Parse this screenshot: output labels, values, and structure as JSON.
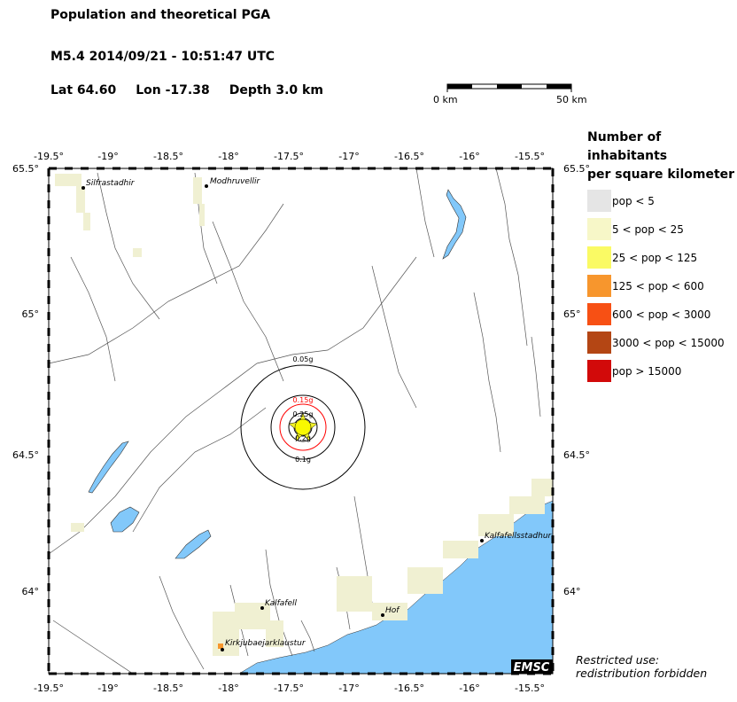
{
  "header": {
    "title": "Population and theoretical PGA",
    "event": "M5.4  2014/09/21 - 10:51:47 UTC",
    "lat": "Lat 64.60",
    "lon": "Lon -17.38",
    "depth": "Depth  3.0 km"
  },
  "scalebar": {
    "left_label": "0 km",
    "right_label": "50 km"
  },
  "axes": {
    "lon_ticks": [
      "-19.5°",
      "-19°",
      "-18.5°",
      "-18°",
      "-17.5°",
      "-17°",
      "-16.5°",
      "-16°",
      "-15.5°"
    ],
    "lat_ticks": [
      "65.5°",
      "65°",
      "64.5°",
      "64°"
    ]
  },
  "epicenter": {
    "lat": 64.6,
    "lon": -17.38
  },
  "pga_contours": [
    {
      "label": "0.05g",
      "color": "#000000"
    },
    {
      "label": "0.1g",
      "color": "#000000"
    },
    {
      "label": "0.15g",
      "color": "#ff0000"
    },
    {
      "label": "0.2g",
      "color": "#000000"
    },
    {
      "label": "0.25g",
      "color": "#000000"
    }
  ],
  "cities": [
    {
      "name": "Silfrastadhir"
    },
    {
      "name": "Modhruvellir"
    },
    {
      "name": "Kalfafell"
    },
    {
      "name": "Kirkjubaejarklaustur"
    },
    {
      "name": "Hof"
    },
    {
      "name": "Kalfafellsstadhur"
    }
  ],
  "legend": {
    "title_line1": "Number of inhabitants",
    "title_line2": "per square kilometer",
    "items": [
      {
        "label": "pop < 5",
        "color": "#e5e5e5"
      },
      {
        "label": "5 < pop < 25",
        "color": "#f7f7c8"
      },
      {
        "label": "25 < pop < 125",
        "color": "#fafa64"
      },
      {
        "label": "125 < pop < 600",
        "color": "#f7962d"
      },
      {
        "label": "600 < pop < 3000",
        "color": "#f75014"
      },
      {
        "label": "3000 < pop < 15000",
        "color": "#b44614"
      },
      {
        "label": "pop > 15000",
        "color": "#d20a0a"
      }
    ]
  },
  "colors": {
    "water": "#82c8fa",
    "pop_low": "#f0f0d2",
    "ring_red": "#ff0000"
  },
  "logo": "EMSC",
  "notice_line1": "Restricted use:",
  "notice_line2": "redistribution forbidden"
}
